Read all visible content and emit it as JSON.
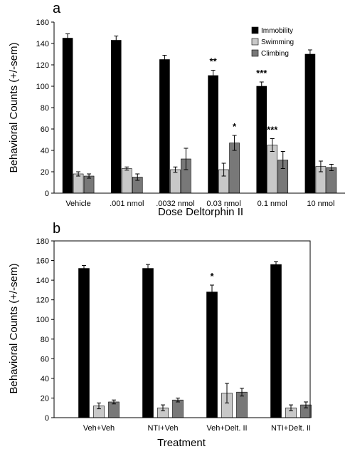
{
  "chart_data": [
    {
      "type": "bar",
      "panel_label": "a",
      "xlabel": "Dose Deltorphin II",
      "ylabel": "Behavioral Counts (+/-sem)",
      "ylim": [
        0,
        160
      ],
      "yticks": [
        0,
        20,
        40,
        60,
        80,
        100,
        120,
        140,
        160
      ],
      "legend_position": "top-right",
      "categories": [
        "Vehicle",
        ".001 nmol",
        ".0032 nmol",
        "0.03 nmol",
        "0.1 nmol",
        "10 nmol"
      ],
      "series": [
        {
          "name": "Immobility",
          "color": "#000000",
          "values": [
            145,
            143,
            125,
            110,
            100,
            130
          ],
          "errors": [
            4,
            4,
            4,
            5,
            4,
            4
          ]
        },
        {
          "name": "Swimming",
          "color": "#c8c8c8",
          "values": [
            18,
            23,
            22,
            22,
            45,
            25
          ],
          "errors": [
            2,
            1.5,
            2.5,
            6,
            6,
            5
          ]
        },
        {
          "name": "Climbing",
          "color": "#787878",
          "values": [
            16,
            15,
            32,
            47,
            31,
            24
          ],
          "errors": [
            2,
            3,
            10,
            7,
            8,
            3
          ]
        }
      ],
      "annotations": [
        {
          "category": 3,
          "series": 0,
          "text": "**"
        },
        {
          "category": 3,
          "series": 2,
          "text": "*"
        },
        {
          "category": 4,
          "series": 0,
          "text": "***"
        },
        {
          "category": 4,
          "series": 1,
          "text": "***"
        }
      ]
    },
    {
      "type": "bar",
      "panel_label": "b",
      "xlabel": "Treatment",
      "ylabel": "Behavioral Counts (+/-sem)",
      "ylim": [
        0,
        180
      ],
      "yticks": [
        0,
        20,
        40,
        60,
        80,
        100,
        120,
        140,
        160,
        180
      ],
      "categories": [
        "Veh+Veh",
        "NTI+Veh",
        "Veh+Delt. II",
        "NTI+Delt. II"
      ],
      "series": [
        {
          "name": "Immobility",
          "color": "#000000",
          "values": [
            152,
            152,
            128,
            156
          ],
          "errors": [
            3,
            4,
            7,
            3
          ]
        },
        {
          "name": "Swimming",
          "color": "#c8c8c8",
          "values": [
            12,
            10,
            25,
            10
          ],
          "errors": [
            3,
            3,
            10,
            3
          ]
        },
        {
          "name": "Climbing",
          "color": "#787878",
          "values": [
            16,
            18,
            26,
            13
          ],
          "errors": [
            2,
            2,
            4,
            3
          ]
        }
      ],
      "annotations": [
        {
          "category": 2,
          "series": 0,
          "text": "*"
        }
      ]
    }
  ]
}
